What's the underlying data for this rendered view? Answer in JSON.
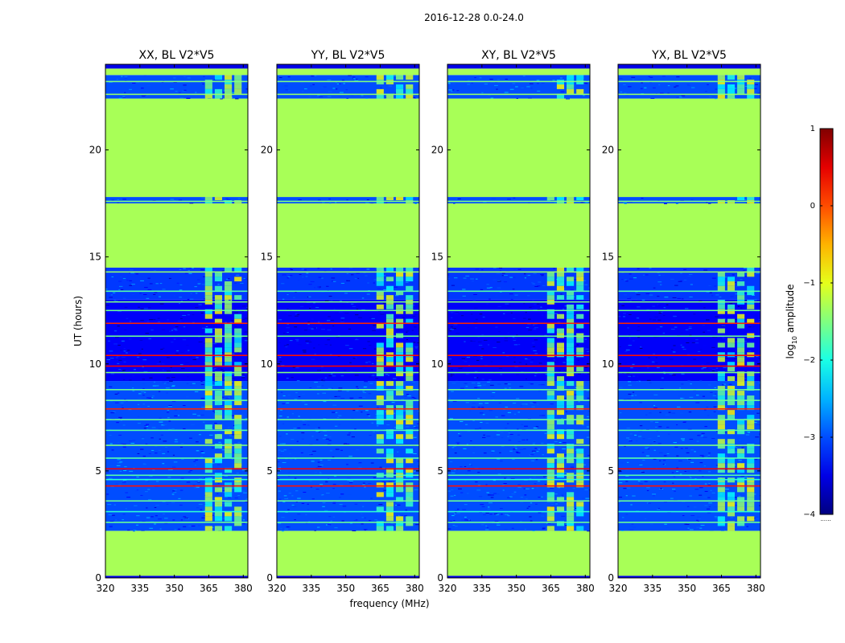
{
  "figure_title": "2016-12-28 0.0-24.0",
  "chart_data": [
    {
      "type": "heatmap",
      "title": "XX, BL V2*V5",
      "xlabel": "",
      "ylabel": "UT (hours)",
      "xlim": [
        320,
        382
      ],
      "ylim": [
        0,
        24
      ],
      "xticks": [
        320,
        335,
        350,
        365,
        380
      ],
      "yticks": [
        0,
        5,
        10,
        15,
        20
      ],
      "hi_band": [
        363,
        380
      ]
    },
    {
      "type": "heatmap",
      "title": "YY, BL V2*V5",
      "xlabel": "frequency (MHz)",
      "ylabel": "",
      "xlim": [
        320,
        382
      ],
      "ylim": [
        0,
        24
      ],
      "xticks": [
        320,
        335,
        350,
        365,
        380
      ],
      "yticks": [
        0,
        5,
        10,
        15,
        20
      ],
      "hi_band": [
        363,
        380
      ]
    },
    {
      "type": "heatmap",
      "title": "XY, BL V2*V5",
      "xlabel": "",
      "ylabel": "",
      "xlim": [
        320,
        382
      ],
      "ylim": [
        0,
        24
      ],
      "xticks": [
        320,
        335,
        350,
        365,
        380
      ],
      "yticks": [
        0,
        5,
        10,
        15,
        20
      ],
      "hi_band": [
        363,
        380
      ]
    },
    {
      "type": "heatmap",
      "title": "YX, BL V2*V5",
      "xlabel": "",
      "ylabel": "",
      "xlim": [
        320,
        382
      ],
      "ylim": [
        0,
        24
      ],
      "xticks": [
        320,
        335,
        350,
        365,
        380
      ],
      "yticks": [
        0,
        5,
        10,
        15,
        20
      ],
      "hi_band": [
        363,
        380
      ]
    }
  ],
  "colorbar": {
    "label_prefix": "log",
    "label_sub": "10",
    "label_suffix": " amplitude",
    "range": [
      -4,
      1
    ],
    "ticks": [
      "1",
      "0",
      "−1",
      "−2",
      "−3",
      "−4"
    ],
    "tick_values": [
      1,
      0,
      -1,
      -2,
      -3,
      -4
    ],
    "footer": "......",
    "colormap": "jet"
  },
  "time_bands": [
    {
      "y0": 0.0,
      "y1": 0.1,
      "value": -3.5
    },
    {
      "y0": 0.1,
      "y1": 2.2,
      "value": -1.3
    },
    {
      "y0": 2.2,
      "y1": 9.2,
      "value": -3.0,
      "noise": true
    },
    {
      "y0": 9.2,
      "y1": 13.0,
      "value": -3.4,
      "noise": true
    },
    {
      "y0": 13.0,
      "y1": 14.5,
      "value": -3.1,
      "noise": true
    },
    {
      "y0": 14.5,
      "y1": 17.5,
      "value": -1.3
    },
    {
      "y0": 17.5,
      "y1": 17.8,
      "value": -3.0,
      "noise": true
    },
    {
      "y0": 17.8,
      "y1": 22.4,
      "value": -1.3
    },
    {
      "y0": 22.4,
      "y1": 23.5,
      "value": -3.0,
      "noise": true
    },
    {
      "y0": 23.5,
      "y1": 23.8,
      "value": -1.3
    },
    {
      "y0": 23.8,
      "y1": 24.0,
      "value": -3.5
    }
  ],
  "rfi_lines": [
    {
      "t": 2.6,
      "value": -1.6
    },
    {
      "t": 3.1,
      "value": -1.9
    },
    {
      "t": 3.6,
      "value": -1.6
    },
    {
      "t": 4.3,
      "value": 0.3
    },
    {
      "t": 4.6,
      "value": -1.9
    },
    {
      "t": 4.8,
      "value": -1.7
    },
    {
      "t": 5.1,
      "value": 0.4
    },
    {
      "t": 5.6,
      "value": -1.7
    },
    {
      "t": 6.2,
      "value": -1.5
    },
    {
      "t": 6.9,
      "value": -1.7
    },
    {
      "t": 7.4,
      "value": -1.6
    },
    {
      "t": 7.9,
      "value": 0.2
    },
    {
      "t": 8.3,
      "value": -1.6
    },
    {
      "t": 8.8,
      "value": -1.6
    },
    {
      "t": 9.6,
      "value": -1.5
    },
    {
      "t": 9.9,
      "value": 0.4
    },
    {
      "t": 10.4,
      "value": 0.3
    },
    {
      "t": 11.3,
      "value": -1.6
    },
    {
      "t": 11.9,
      "value": 0.2
    },
    {
      "t": 12.5,
      "value": -1.6
    },
    {
      "t": 12.9,
      "value": -1.5
    },
    {
      "t": 13.4,
      "value": -1.7
    },
    {
      "t": 14.3,
      "value": -1.4
    },
    {
      "t": 17.6,
      "value": -1.5
    },
    {
      "t": 22.6,
      "value": -1.4
    },
    {
      "t": 23.2,
      "value": -1.5
    }
  ]
}
